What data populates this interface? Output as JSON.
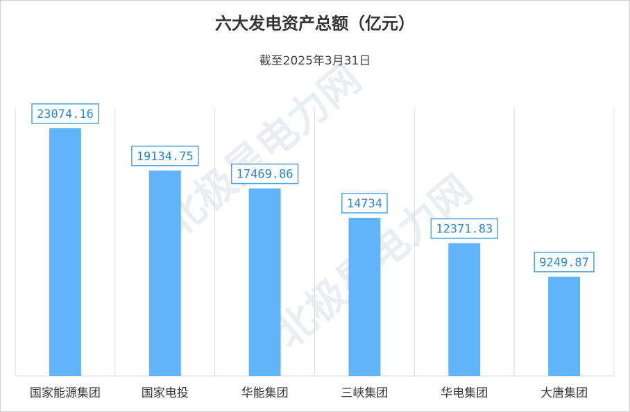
{
  "chart_data": {
    "type": "bar",
    "title": "六大发电资产总额（亿元）",
    "subtitle": "截至2025年3月31日",
    "categories": [
      "国家能源集团",
      "国家电投",
      "华能集团",
      "三峡集团",
      "华电集团",
      "大唐集团"
    ],
    "values": [
      23074.16,
      19134.75,
      17469.86,
      14734,
      12371.83,
      9249.87
    ],
    "color": "#62b4f8",
    "ylim": [
      0,
      25000
    ],
    "watermark": "北极星电力网"
  }
}
